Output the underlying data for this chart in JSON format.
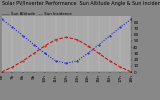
{
  "title": "Solar PV/Inverter Performance  Sun Altitude Angle & Sun Incidence Angle on PV Panels",
  "x_hours": [
    6,
    7,
    8,
    9,
    10,
    11,
    12,
    13,
    14,
    15,
    16,
    17,
    18
  ],
  "sun_altitude": [
    0,
    8,
    18,
    30,
    42,
    52,
    56,
    52,
    42,
    30,
    18,
    8,
    0
  ],
  "sun_incidence": [
    85,
    72,
    58,
    44,
    30,
    18,
    14,
    18,
    30,
    44,
    58,
    72,
    85
  ],
  "altitude_color": "#cc0000",
  "incidence_color": "#0000cc",
  "ylim": [
    0,
    90
  ],
  "xlim": [
    6,
    18
  ],
  "background_color": "#888888",
  "plot_bg_color": "#aaaaaa",
  "grid_color": "#cccccc",
  "tick_color": "#000000",
  "right_yticks": [
    0,
    10,
    20,
    30,
    40,
    50,
    60,
    70,
    80
  ],
  "right_yticklabels": [
    "0",
    "10",
    "20",
    "30",
    "40",
    "50",
    "60",
    "70",
    "80"
  ],
  "xtick_labels": [
    "6h",
    "7h",
    "8h",
    "9h",
    "10h",
    "11h",
    "12h",
    "13h",
    "14h",
    "15h",
    "16h",
    "17h",
    "18h"
  ],
  "title_fontsize": 3.5,
  "axis_fontsize": 3.0,
  "legend_labels": [
    "Sun Incidence",
    "Sun Altitude"
  ],
  "legend_fontsize": 2.8
}
